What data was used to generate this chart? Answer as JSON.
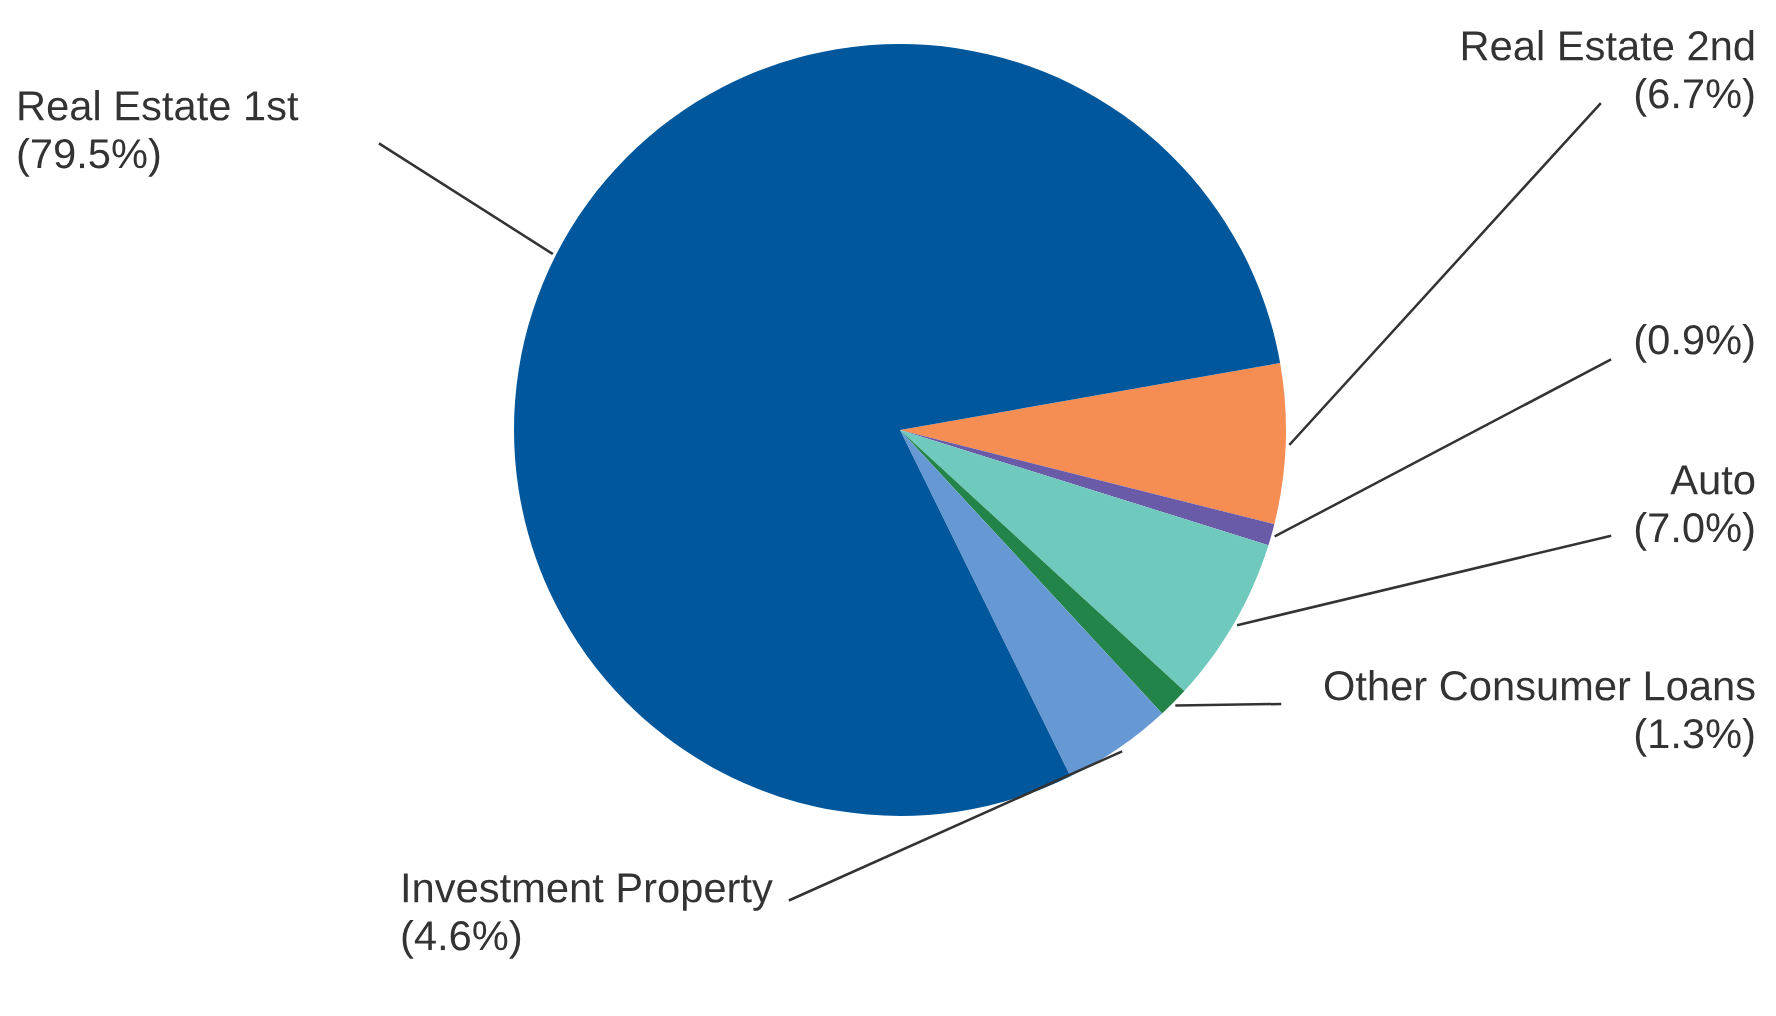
{
  "chart_data": {
    "type": "pie",
    "categories": [
      "Real Estate 2nd",
      null,
      "Auto",
      "Other Consumer Loans",
      "Investment Property",
      "Real Estate 1st"
    ],
    "values": [
      6.7,
      0.9,
      7.0,
      1.3,
      4.6,
      79.5
    ],
    "value_labels": [
      "(6.7%)",
      "(0.9%)",
      "(7.0%)",
      "(1.3%)",
      "(4.6%)",
      "(79.5%)"
    ],
    "colors": [
      "#f68d53",
      "#6a5ba8",
      "#6fc9bd",
      "#23844a",
      "#6699d3",
      "#00579b"
    ]
  }
}
